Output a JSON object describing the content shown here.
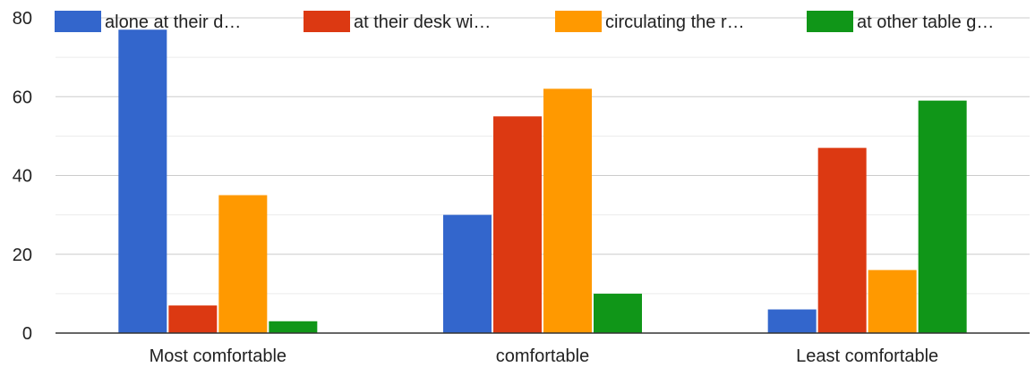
{
  "chart_data": {
    "type": "bar",
    "categories": [
      "Most comfortable",
      "comfortable",
      "Least comfortable"
    ],
    "series": [
      {
        "name": "alone at their d…",
        "color": "#3366cc",
        "values": [
          77,
          30,
          6
        ]
      },
      {
        "name": "at their desk wi…",
        "color": "#dc3912",
        "values": [
          7,
          55,
          47
        ]
      },
      {
        "name": "circulating the r…",
        "color": "#ff9900",
        "values": [
          35,
          62,
          16
        ]
      },
      {
        "name": "at other table g…",
        "color": "#109618",
        "values": [
          3,
          10,
          59
        ]
      }
    ],
    "title": "",
    "xlabel": "",
    "ylabel": "",
    "ylim": [
      0,
      80
    ],
    "yticks": [
      0,
      20,
      40,
      60,
      80
    ],
    "grid": true,
    "legend_position": "top"
  }
}
